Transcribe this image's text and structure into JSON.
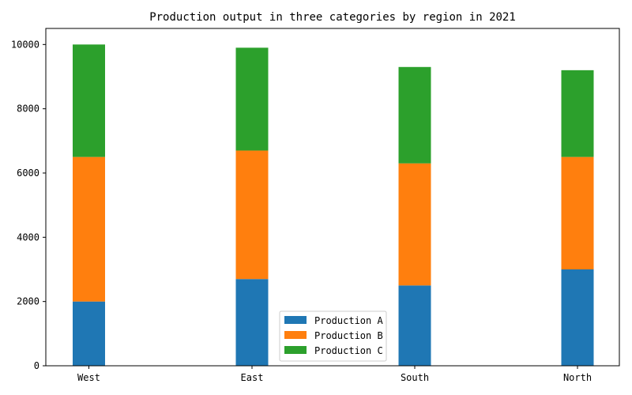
{
  "chart_data": {
    "type": "bar",
    "stacked": true,
    "title": "Production output in three categories by region in 2021",
    "xlabel": "",
    "ylabel": "",
    "categories": [
      "West",
      "East",
      "South",
      "North"
    ],
    "series": [
      {
        "name": "Production A",
        "values": [
          2000,
          2700,
          2500,
          3000
        ],
        "color": "#1f77b4"
      },
      {
        "name": "Production B",
        "values": [
          4500,
          4000,
          3800,
          3500
        ],
        "color": "#ff7f0e"
      },
      {
        "name": "Production C",
        "values": [
          3500,
          3200,
          3000,
          2700
        ],
        "color": "#2ca02c"
      }
    ],
    "ylim": [
      0,
      10500
    ],
    "yticks": [
      0,
      2000,
      4000,
      6000,
      8000,
      10000
    ],
    "grid": false,
    "legend_position": "bottom-center"
  }
}
